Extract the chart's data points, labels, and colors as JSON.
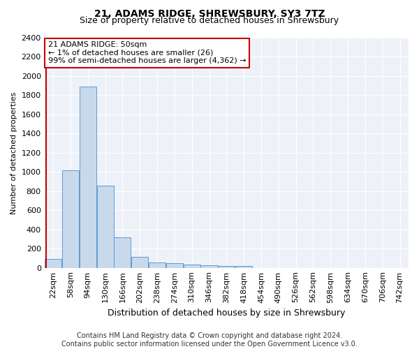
{
  "title1": "21, ADAMS RIDGE, SHREWSBURY, SY3 7TZ",
  "title2": "Size of property relative to detached houses in Shrewsbury",
  "xlabel": "Distribution of detached houses by size in Shrewsbury",
  "ylabel": "Number of detached properties",
  "footer1": "Contains HM Land Registry data © Crown copyright and database right 2024.",
  "footer2": "Contains public sector information licensed under the Open Government Licence v3.0.",
  "categories": [
    "22sqm",
    "58sqm",
    "94sqm",
    "130sqm",
    "166sqm",
    "202sqm",
    "238sqm",
    "274sqm",
    "310sqm",
    "346sqm",
    "382sqm",
    "418sqm",
    "454sqm",
    "490sqm",
    "526sqm",
    "562sqm",
    "598sqm",
    "634sqm",
    "670sqm",
    "706sqm",
    "742sqm"
  ],
  "values": [
    90,
    1020,
    1890,
    860,
    320,
    115,
    55,
    45,
    35,
    25,
    20,
    20,
    0,
    0,
    0,
    0,
    0,
    0,
    0,
    0,
    0
  ],
  "bar_color": "#c9d9ec",
  "bar_edge_color": "#5b9bd5",
  "background_color": "#eef2f8",
  "grid_color": "#ffffff",
  "vline_color": "#cc0000",
  "vline_pos": -0.42,
  "annotation_text": "21 ADAMS RIDGE: 50sqm\n← 1% of detached houses are smaller (26)\n99% of semi-detached houses are larger (4,362) →",
  "annotation_box_color": "#cc0000",
  "ylim": [
    0,
    2400
  ],
  "yticks": [
    0,
    200,
    400,
    600,
    800,
    1000,
    1200,
    1400,
    1600,
    1800,
    2000,
    2200,
    2400
  ],
  "title1_fontsize": 10,
  "title2_fontsize": 9,
  "xlabel_fontsize": 9,
  "ylabel_fontsize": 8,
  "tick_fontsize": 8,
  "footer_fontsize": 7
}
